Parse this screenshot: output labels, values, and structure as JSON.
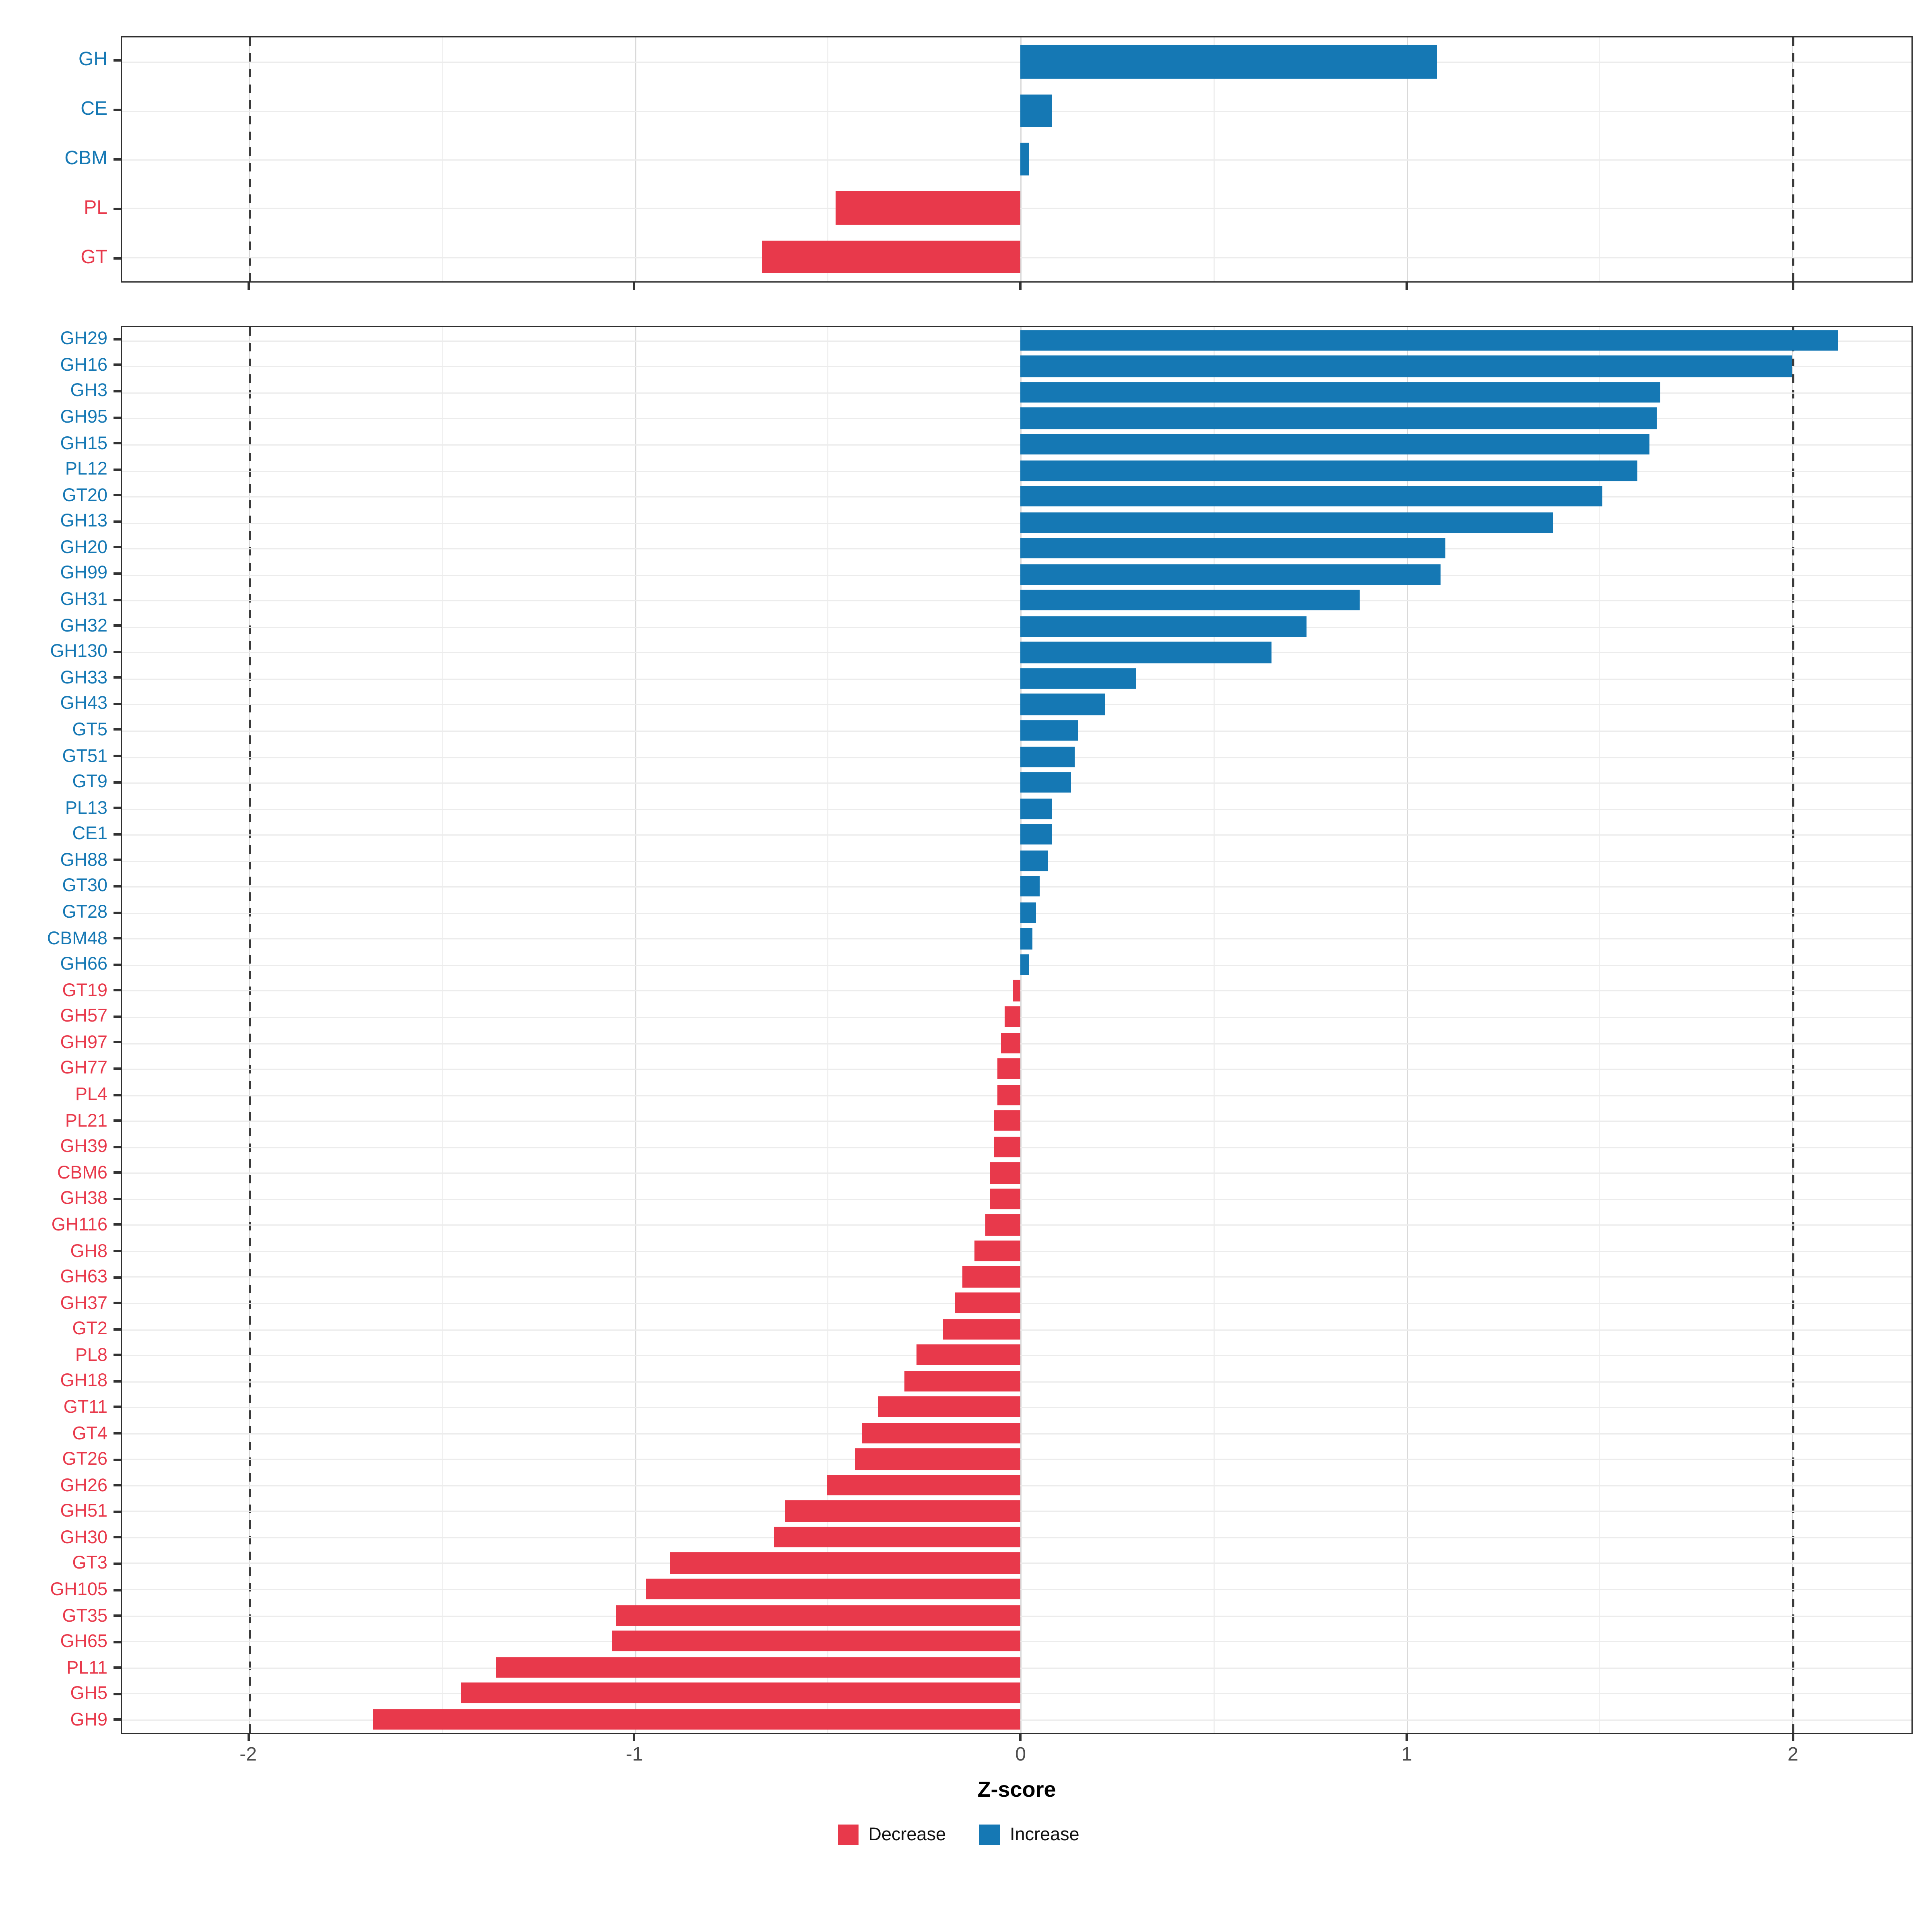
{
  "figure": {
    "xlabel": "Z-score",
    "x_ticks": [
      -2,
      -1,
      0,
      1,
      2
    ],
    "xlim": [
      -2.33,
      2.31
    ],
    "dashed_lines": [
      -2,
      2
    ],
    "colors": {
      "increase": "#1578B4",
      "decrease": "#E8394B"
    }
  },
  "legend": {
    "items": [
      {
        "label": "Decrease",
        "color": "#E8394B"
      },
      {
        "label": "Increase",
        "color": "#1578B4"
      }
    ]
  },
  "chart_data": [
    {
      "type": "bar",
      "orientation": "horizontal",
      "title": "",
      "xlabel": "Z-score",
      "xlim": [
        -2.33,
        2.31
      ],
      "grid": true,
      "categories": [
        "GH",
        "CE",
        "CBM",
        "PL",
        "GT"
      ],
      "values": [
        1.08,
        0.08,
        0.02,
        -0.48,
        -0.67
      ],
      "bar_height_pct": 68
    },
    {
      "type": "bar",
      "orientation": "horizontal",
      "title": "",
      "xlabel": "Z-score",
      "xlim": [
        -2.33,
        2.31
      ],
      "grid": true,
      "categories": [
        "GH29",
        "GH16",
        "GH3",
        "GH95",
        "GH15",
        "PL12",
        "GT20",
        "GH13",
        "GH20",
        "GH99",
        "GH31",
        "GH32",
        "GH130",
        "GH33",
        "GH43",
        "GT5",
        "GT51",
        "GT9",
        "PL13",
        "CE1",
        "GH88",
        "GT30",
        "GT28",
        "CBM48",
        "GH66",
        "GT19",
        "GH57",
        "GH97",
        "GH77",
        "PL4",
        "PL21",
        "GH39",
        "CBM6",
        "GH38",
        "GH116",
        "GH8",
        "GH63",
        "GH37",
        "GT2",
        "PL8",
        "GH18",
        "GT11",
        "GT4",
        "GT26",
        "GH26",
        "GH51",
        "GH30",
        "GT3",
        "GH105",
        "GT35",
        "GH65",
        "PL11",
        "GH5",
        "GH9"
      ],
      "values": [
        2.12,
        2.0,
        1.66,
        1.65,
        1.63,
        1.6,
        1.51,
        1.38,
        1.1,
        1.09,
        0.88,
        0.74,
        0.65,
        0.3,
        0.22,
        0.15,
        0.14,
        0.13,
        0.08,
        0.08,
        0.07,
        0.05,
        0.04,
        0.03,
        0.02,
        -0.02,
        -0.04,
        -0.05,
        -0.06,
        -0.06,
        -0.07,
        -0.07,
        -0.08,
        -0.08,
        -0.09,
        -0.12,
        -0.15,
        -0.17,
        -0.2,
        -0.27,
        -0.3,
        -0.37,
        -0.41,
        -0.43,
        -0.5,
        -0.61,
        -0.64,
        -0.91,
        -0.97,
        -1.05,
        -1.06,
        -1.36,
        -1.45,
        -1.68
      ],
      "bar_height_pct": 80
    }
  ]
}
